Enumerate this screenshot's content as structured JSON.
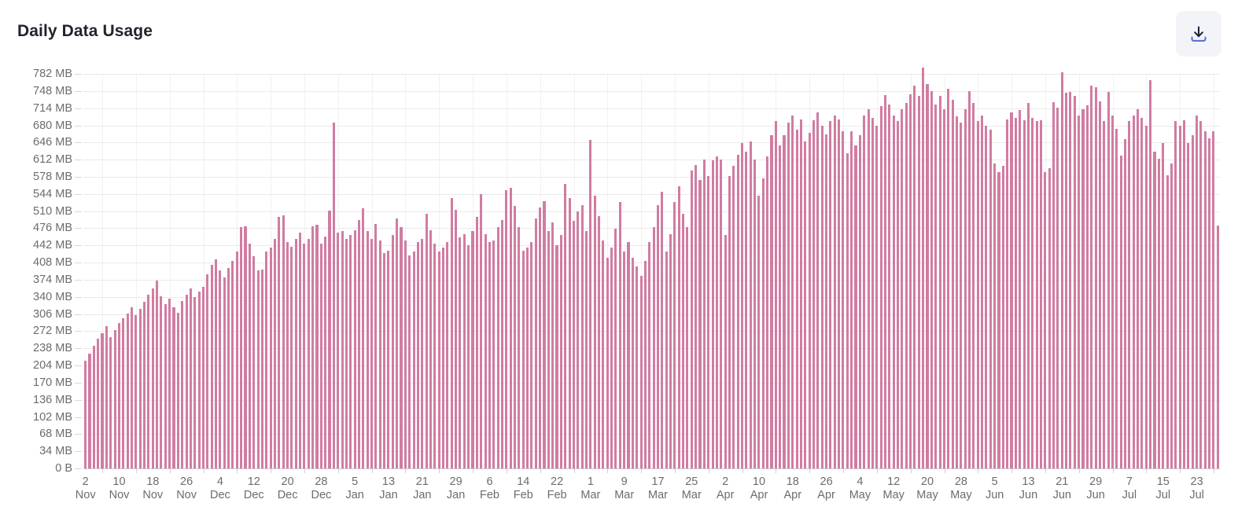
{
  "header": {
    "title": "Daily Data Usage"
  },
  "toolbar": {
    "download_button": "download"
  },
  "colors": {
    "bar": "#d17ca2",
    "gridline": "#eaeaea",
    "gridline_vertical": "#f1f1f2",
    "axis_line": "#c9c9c9",
    "tick": "#d8d8d8",
    "label_text": "#6c6c6c",
    "title_text": "#20242c",
    "button_bg": "#f3f4f8",
    "icon_arrow": "#1c2740",
    "icon_tray": "#5f6fde"
  },
  "chart_data": {
    "type": "bar",
    "title": "Daily Data Usage",
    "ylabel": "",
    "xlabel": "",
    "unit": "MB",
    "ylim": [
      0,
      782
    ],
    "y_tick_step": 34,
    "grid": true,
    "legend": false,
    "y_tick_labels": [
      "782 MB",
      "748 MB",
      "714 MB",
      "680 MB",
      "646 MB",
      "612 MB",
      "578 MB",
      "544 MB",
      "510 MB",
      "476 MB",
      "442 MB",
      "408 MB",
      "374 MB",
      "340 MB",
      "306 MB",
      "272 MB",
      "238 MB",
      "204 MB",
      "170 MB",
      "136 MB",
      "102 MB",
      "68 MB",
      "34 MB",
      "0 B"
    ],
    "x_tick_labels": [
      "2 Nov",
      "10 Nov",
      "18 Nov",
      "26 Nov",
      "4 Dec",
      "12 Dec",
      "20 Dec",
      "28 Dec",
      "5 Jan",
      "13 Jan",
      "21 Jan",
      "29 Jan",
      "6 Feb",
      "14 Feb",
      "22 Feb",
      "1 Mar",
      "9 Mar",
      "17 Mar",
      "25 Mar",
      "2 Apr",
      "10 Apr",
      "18 Apr",
      "26 Apr",
      "4 May",
      "12 May",
      "20 May",
      "28 May",
      "5 Jun",
      "13 Jun",
      "21 Jun",
      "29 Jun",
      "7 Jul",
      "15 Jul",
      "23 Jul"
    ],
    "x_label_every_n_days": 8,
    "first_bar_label": "2 Nov",
    "values_mb": [
      214,
      228,
      243,
      257,
      268,
      282,
      261,
      274,
      289,
      297,
      307,
      319,
      304,
      316,
      331,
      344,
      357,
      373,
      341,
      326,
      337,
      319,
      309,
      332,
      345,
      357,
      339,
      350,
      360,
      385,
      404,
      415,
      392,
      378,
      398,
      412,
      430,
      478,
      480,
      445,
      420,
      392,
      394,
      430,
      438,
      455,
      499,
      502,
      448,
      440,
      455,
      468,
      445,
      455,
      480,
      483,
      445,
      460,
      511,
      686,
      468,
      470,
      455,
      462,
      472,
      492,
      515,
      470,
      455,
      485,
      452,
      427,
      432,
      462,
      495,
      478,
      452,
      422,
      430,
      448,
      455,
      505,
      472,
      445,
      430,
      438,
      448,
      536,
      512,
      458,
      465,
      442,
      470,
      498,
      543,
      465,
      448,
      452,
      478,
      492,
      552,
      556,
      520,
      478,
      432,
      438,
      448,
      495,
      518,
      530,
      470,
      488,
      442,
      462,
      564,
      536,
      490,
      510,
      522,
      470,
      651,
      540,
      500,
      452,
      418,
      438,
      475,
      528,
      430,
      448,
      418,
      400,
      382,
      412,
      448,
      478,
      522,
      548,
      430,
      465,
      528,
      560,
      505,
      478,
      590,
      602,
      572,
      612,
      580,
      610,
      618,
      612,
      462,
      580,
      600,
      622,
      645,
      628,
      648,
      612,
      540,
      575,
      618,
      660,
      688,
      640,
      660,
      685,
      700,
      672,
      692,
      648,
      665,
      690,
      705,
      680,
      662,
      688,
      700,
      692,
      668,
      625,
      668,
      640,
      660,
      700,
      712,
      695,
      680,
      718,
      740,
      722,
      700,
      688,
      712,
      725,
      742,
      758,
      738,
      795,
      762,
      748,
      722,
      738,
      712,
      752,
      730,
      698,
      685,
      712,
      748,
      725,
      688,
      700,
      680,
      672,
      605,
      588,
      600,
      692,
      705,
      695,
      710,
      690,
      725,
      695,
      688,
      690,
      588,
      595,
      726,
      715,
      785,
      744,
      746,
      738,
      700,
      712,
      720,
      758,
      756,
      727,
      688,
      746,
      700,
      673,
      620,
      653,
      688,
      700,
      712,
      695,
      680,
      770,
      628,
      614,
      645,
      581,
      605,
      688,
      680,
      690,
      645,
      660,
      700,
      688,
      668,
      655,
      668,
      481
    ]
  },
  "layout_hints": {
    "legend_position": "none",
    "x_axis_two_line_labels": true
  }
}
